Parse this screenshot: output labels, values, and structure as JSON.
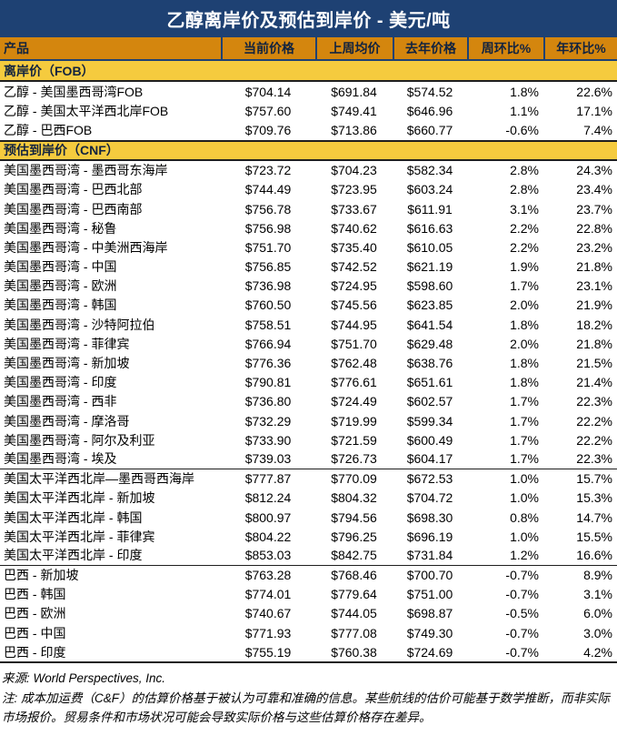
{
  "title": "乙醇离岸价及预估到岸价 - 美元/吨",
  "columns": [
    "产品",
    "当前价格",
    "上周均价",
    "去年价格",
    "周环比%",
    "年环比%"
  ],
  "sections": [
    {
      "label": "离岸价（FOB）",
      "rows": [
        {
          "cells": [
            "乙醇 - 美国墨西哥湾FOB",
            "$704.14",
            "$691.84",
            "$574.52",
            "1.8%",
            "22.6%"
          ]
        },
        {
          "cells": [
            "乙醇 - 美国太平洋西北岸FOB",
            "$757.60",
            "$749.41",
            "$646.96",
            "1.1%",
            "17.1%"
          ]
        },
        {
          "cells": [
            "乙醇 - 巴西FOB",
            "$709.76",
            "$713.86",
            "$660.77",
            "-0.6%",
            "7.4%"
          ]
        }
      ]
    },
    {
      "label": "预估到岸价（CNF）",
      "rows": [
        {
          "cells": [
            "美国墨西哥湾 - 墨西哥东海岸",
            "$723.72",
            "$704.23",
            "$582.34",
            "2.8%",
            "24.3%"
          ]
        },
        {
          "cells": [
            "美国墨西哥湾 - 巴西北部",
            "$744.49",
            "$723.95",
            "$603.24",
            "2.8%",
            "23.4%"
          ]
        },
        {
          "cells": [
            "美国墨西哥湾 - 巴西南部",
            "$756.78",
            "$733.67",
            "$611.91",
            "3.1%",
            "23.7%"
          ]
        },
        {
          "cells": [
            "美国墨西哥湾 - 秘鲁",
            "$756.98",
            "$740.62",
            "$616.63",
            "2.2%",
            "22.8%"
          ]
        },
        {
          "cells": [
            "美国墨西哥湾 - 中美洲西海岸",
            "$751.70",
            "$735.40",
            "$610.05",
            "2.2%",
            "23.2%"
          ]
        },
        {
          "cells": [
            "美国墨西哥湾 - 中国",
            "$756.85",
            "$742.52",
            "$621.19",
            "1.9%",
            "21.8%"
          ]
        },
        {
          "cells": [
            "美国墨西哥湾 - 欧洲",
            "$736.98",
            "$724.95",
            "$598.60",
            "1.7%",
            "23.1%"
          ]
        },
        {
          "cells": [
            "美国墨西哥湾 - 韩国",
            "$760.50",
            "$745.56",
            "$623.85",
            "2.0%",
            "21.9%"
          ]
        },
        {
          "cells": [
            "美国墨西哥湾 - 沙特阿拉伯",
            "$758.51",
            "$744.95",
            "$641.54",
            "1.8%",
            "18.2%"
          ]
        },
        {
          "cells": [
            "美国墨西哥湾 - 菲律宾",
            "$766.94",
            "$751.70",
            "$629.48",
            "2.0%",
            "21.8%"
          ]
        },
        {
          "cells": [
            "美国墨西哥湾 - 新加坡",
            "$776.36",
            "$762.48",
            "$638.76",
            "1.8%",
            "21.5%"
          ]
        },
        {
          "cells": [
            "美国墨西哥湾 - 印度",
            "$790.81",
            "$776.61",
            "$651.61",
            "1.8%",
            "21.4%"
          ]
        },
        {
          "cells": [
            "美国墨西哥湾 - 西非",
            "$736.80",
            "$724.49",
            "$602.57",
            "1.7%",
            "22.3%"
          ]
        },
        {
          "cells": [
            "美国墨西哥湾 - 摩洛哥",
            "$732.29",
            "$719.99",
            "$599.34",
            "1.7%",
            "22.2%"
          ]
        },
        {
          "cells": [
            "美国墨西哥湾 - 阿尔及利亚",
            "$733.90",
            "$721.59",
            "$600.49",
            "1.7%",
            "22.2%"
          ]
        },
        {
          "cells": [
            "美国墨西哥湾 - 埃及",
            "$739.03",
            "$726.73",
            "$604.17",
            "1.7%",
            "22.3%"
          ],
          "group_end": true
        },
        {
          "cells": [
            "美国太平洋西北岸—墨西哥西海岸",
            "$777.87",
            "$770.09",
            "$672.53",
            "1.0%",
            "15.7%"
          ]
        },
        {
          "cells": [
            "美国太平洋西北岸 - 新加坡",
            "$812.24",
            "$804.32",
            "$704.72",
            "1.0%",
            "15.3%"
          ]
        },
        {
          "cells": [
            "美国太平洋西北岸 - 韩国",
            "$800.97",
            "$794.56",
            "$698.30",
            "0.8%",
            "14.7%"
          ]
        },
        {
          "cells": [
            "美国太平洋西北岸 - 菲律宾",
            "$804.22",
            "$796.25",
            "$696.19",
            "1.0%",
            "15.5%"
          ]
        },
        {
          "cells": [
            "美国太平洋西北岸 - 印度",
            "$853.03",
            "$842.75",
            "$731.84",
            "1.2%",
            "16.6%"
          ],
          "group_end": true
        },
        {
          "cells": [
            "巴西 - 新加坡",
            "$763.28",
            "$768.46",
            "$700.70",
            "-0.7%",
            "8.9%"
          ]
        },
        {
          "cells": [
            "巴西 - 韩国",
            "$774.01",
            "$779.64",
            "$751.00",
            "-0.7%",
            "3.1%"
          ]
        },
        {
          "cells": [
            "巴西 - 欧洲",
            "$740.67",
            "$744.05",
            "$698.87",
            "-0.5%",
            "6.0%"
          ]
        },
        {
          "cells": [
            "巴西 - 中国",
            "$771.93",
            "$777.08",
            "$749.30",
            "-0.7%",
            "3.0%"
          ]
        },
        {
          "cells": [
            "巴西 - 印度",
            "$755.19",
            "$760.38",
            "$724.69",
            "-0.7%",
            "4.2%"
          ]
        }
      ]
    }
  ],
  "footer": {
    "source": "来源: World Perspectives, Inc.",
    "note": "注: 成本加运费（C&F）的估算价格基于被认为可靠和准确的信息。某些航线的估价可能基于数学推断，而非实际市场报价。贸易条件和市场状况可能会导致实际价格与这些估算价格存在差异。"
  },
  "colors": {
    "navy": "#1E4173",
    "orange": "#D4860E",
    "yellow": "#F5CB3E",
    "header_text": "#12233F"
  }
}
